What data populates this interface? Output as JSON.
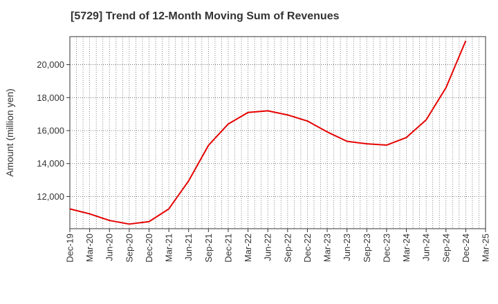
{
  "chart_data": {
    "type": "line",
    "title": "[5729]  Trend of 12-Month Moving Sum of Revenues",
    "ylabel": "Amount (million yen)",
    "xlabel": "",
    "x_tick_labels": [
      "Dec-19",
      "Mar-20",
      "Jun-20",
      "Sep-20",
      "Dec-20",
      "Mar-21",
      "Jun-21",
      "Sep-21",
      "Dec-21",
      "Mar-22",
      "Jun-22",
      "Sep-22",
      "Dec-22",
      "Mar-23",
      "Jun-23",
      "Sep-23",
      "Dec-23",
      "Mar-24",
      "Jun-24",
      "Sep-24",
      "Dec-24",
      "Mar-25"
    ],
    "y_ticks": [
      12000,
      14000,
      16000,
      18000,
      20000
    ],
    "y_tick_labels": [
      "12,000",
      "14,000",
      "16,000",
      "18,000",
      "20,000"
    ],
    "ylim": [
      10050,
      21700
    ],
    "grid": true,
    "series": [
      {
        "color": "#e60000",
        "x": [
          "Dec-19",
          "Mar-20",
          "Jun-20",
          "Sep-20",
          "Dec-20",
          "Mar-21",
          "Jun-21",
          "Sep-21",
          "Dec-21",
          "Mar-22",
          "Jun-22",
          "Sep-22",
          "Dec-22",
          "Mar-23",
          "Jun-23",
          "Sep-23",
          "Dec-23",
          "Mar-24",
          "Jun-24",
          "Sep-24",
          "Dec-24"
        ],
        "values": [
          11250,
          10950,
          10550,
          10330,
          10480,
          11250,
          12950,
          15100,
          16400,
          17100,
          17200,
          16950,
          16580,
          15920,
          15350,
          15200,
          15120,
          15580,
          16650,
          18600,
          21450
        ]
      }
    ]
  }
}
